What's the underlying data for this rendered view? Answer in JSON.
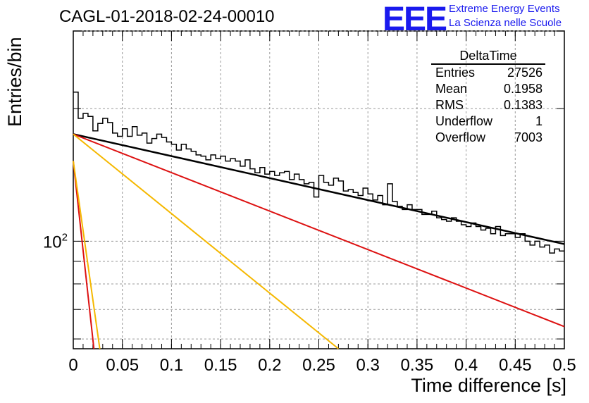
{
  "header": {
    "run_title": "CAGL-01-2018-02-24-00010",
    "logo_text": "EEE",
    "logo_line1": "Extreme Energy Events",
    "logo_line2": "La Scienza nelle Scuole"
  },
  "stats_box": {
    "name": "DeltaTime",
    "rows": [
      {
        "label": "Entries",
        "value": "27526"
      },
      {
        "label": "Mean",
        "value": "0.1958"
      },
      {
        "label": "RMS",
        "value": "0.1383"
      },
      {
        "label": "Underflow",
        "value": "1"
      },
      {
        "label": "Overflow",
        "value": "7003"
      }
    ]
  },
  "chart_data": {
    "type": "line",
    "title": "CAGL-01-2018-02-24-00010",
    "xlabel": "Time difference [s]",
    "ylabel": "Entries/bin",
    "xlim": [
      0,
      0.5
    ],
    "ylim": [
      57,
      300
    ],
    "yscale": "log",
    "grid": true,
    "x_ticks": [
      "0",
      "0.05",
      "0.1",
      "0.15",
      "0.2",
      "0.25",
      "0.3",
      "0.35",
      "0.4",
      "0.45",
      "0.5"
    ],
    "y_tick_label": "10",
    "y_tick_exponent": "2",
    "histogram": {
      "bin_width": 0.005,
      "counts": [
        218,
        190,
        195,
        192,
        178,
        185,
        190,
        186,
        176,
        173,
        180,
        173,
        182,
        174,
        176,
        167,
        171,
        175,
        172,
        168,
        166,
        161,
        166,
        162,
        160,
        157,
        156,
        153,
        157,
        154,
        156,
        152,
        154,
        152,
        148,
        153,
        146,
        143,
        147,
        142,
        144,
        141,
        143,
        144,
        138,
        142,
        138,
        135,
        136,
        126,
        141,
        136,
        134,
        139,
        137,
        130,
        131,
        129,
        127,
        132,
        128,
        124,
        127,
        121,
        135,
        123,
        120,
        118,
        121,
        118,
        118,
        115,
        115,
        117,
        113,
        112,
        111,
        113,
        111,
        109,
        108,
        110,
        108,
        106,
        107,
        104,
        108,
        103,
        104,
        104,
        102,
        104,
        100,
        98,
        100,
        97,
        98,
        94,
        96,
        95
      ]
    },
    "series": [
      {
        "color": "#000000",
        "y0": 175,
        "y_end": 98.5
      },
      {
        "color": "#dd1111",
        "y0": 175,
        "y_end": 64
      },
      {
        "color": "#f5b800",
        "y0": 175,
        "y_end": 57,
        "x_end": 0.27
      },
      {
        "color": "#dd1111",
        "y0": 152,
        "y_end": 57,
        "x_end": 0.021
      },
      {
        "color": "#f5b800",
        "y0": 152,
        "y_end": 57,
        "x_end": 0.027
      }
    ]
  }
}
